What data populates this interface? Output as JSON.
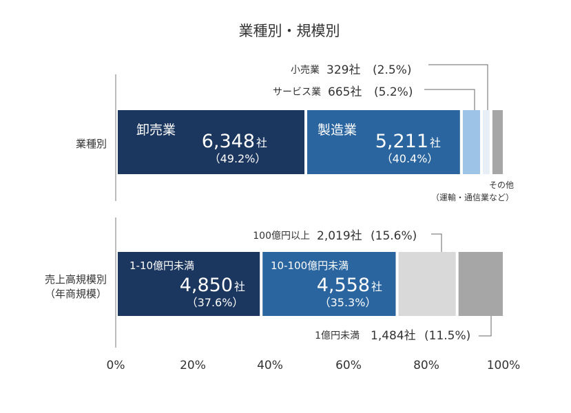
{
  "chart_data": {
    "type": "bar",
    "orientation": "horizontal-stacked-100",
    "title": "業種別・規模別",
    "xlim": [
      0,
      100
    ],
    "x_ticks": [
      "0%",
      "20%",
      "40%",
      "60%",
      "80%",
      "100%"
    ],
    "rows": [
      {
        "label": "業種別",
        "segments": [
          {
            "name": "卸売業",
            "count": "6,348",
            "unit": "社",
            "pct_text": "（49.2%）",
            "value": 49.2,
            "color": "#1b365f"
          },
          {
            "name": "製造業",
            "count": "5,211",
            "unit": "社",
            "pct_text": "（40.4%）",
            "value": 40.4,
            "color": "#2a65a0"
          },
          {
            "name": "サービス業",
            "count": "665社",
            "pct_text": "(5.2%)",
            "value": 5.2,
            "color": "#9dc3e6"
          },
          {
            "name": "小売業",
            "count": "329社",
            "pct_text": "(2.5%)",
            "value": 2.5,
            "color": "#e7eef6"
          },
          {
            "name": "その他",
            "name_line2": "（運輸・通信業など）",
            "value": 2.7,
            "color": "#a6a6a6"
          }
        ]
      },
      {
        "label": "売上高規模別",
        "label_line2": "（年商規模）",
        "segments": [
          {
            "name": "1-10億円未満",
            "count": "4,850",
            "unit": "社",
            "pct_text": "（37.6%）",
            "value": 37.6,
            "color": "#1b365f"
          },
          {
            "name": "10-100億円未満",
            "count": "4,558",
            "unit": "社",
            "pct_text": "（35.3%）",
            "value": 35.3,
            "color": "#2a65a0"
          },
          {
            "name": "100億円以上",
            "count": "2,019社",
            "pct_text": "(15.6%)",
            "value": 15.6,
            "color": "#d9d9d9"
          },
          {
            "name": "1億円未満",
            "count": "1,484社",
            "pct_text": "(11.5%)",
            "value": 11.5,
            "color": "#a6a6a6"
          }
        ]
      }
    ]
  }
}
